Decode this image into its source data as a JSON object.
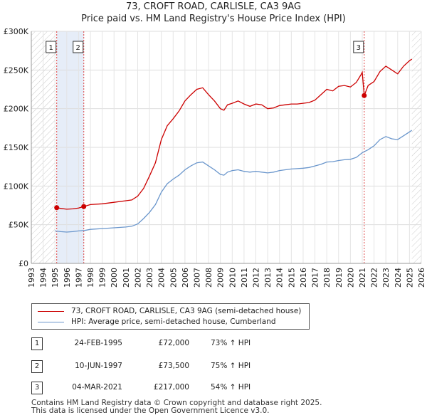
{
  "header": {
    "title": "73, CROFT ROAD, CARLISLE, CA3 9AG",
    "subtitle": "Price paid vs. HM Land Registry's House Price Index (HPI)"
  },
  "chart_data": {
    "type": "line",
    "title": "73, CROFT ROAD, CARLISLE, CA3 9AG",
    "subtitle": "Price paid vs. HM Land Registry's House Price Index (HPI)",
    "xlabel": "",
    "ylabel": "",
    "xlim": [
      1993,
      2026
    ],
    "ylim": [
      0,
      300000
    ],
    "x_ticks": [
      1993,
      1994,
      1995,
      1996,
      1997,
      1998,
      1999,
      2000,
      2001,
      2002,
      2003,
      2004,
      2005,
      2006,
      2007,
      2008,
      2009,
      2010,
      2011,
      2012,
      2013,
      2014,
      2015,
      2016,
      2017,
      2018,
      2019,
      2020,
      2021,
      2022,
      2023,
      2024,
      2025,
      2026
    ],
    "y_ticks": [
      {
        "value": 0,
        "label": "£0"
      },
      {
        "value": 50000,
        "label": "£50K"
      },
      {
        "value": 100000,
        "label": "£100K"
      },
      {
        "value": 150000,
        "label": "£150K"
      },
      {
        "value": 200000,
        "label": "£200K"
      },
      {
        "value": 250000,
        "label": "£250K"
      },
      {
        "value": 300000,
        "label": "£300K"
      }
    ],
    "grid": true,
    "colors": {
      "property": "#cc0000",
      "hpi": "#6a96cc",
      "shade": "#dce6f5",
      "marker_line": "#dd4444",
      "hatch": "#bbbbbb"
    },
    "series": [
      {
        "name": "73, CROFT ROAD, CARLISLE, CA3 9AG (semi-detached house)",
        "x": [
          1995.15,
          1995.5,
          1996.0,
          1996.5,
          1997.0,
          1997.44,
          1998.0,
          1999.0,
          2000.0,
          2001.0,
          2001.5,
          2002.0,
          2002.5,
          2003.0,
          2003.5,
          2004.0,
          2004.5,
          2005.0,
          2005.5,
          2006.0,
          2006.5,
          2007.0,
          2007.5,
          2008.0,
          2008.5,
          2009.0,
          2009.3,
          2009.6,
          2010.0,
          2010.5,
          2011.0,
          2011.5,
          2012.0,
          2012.5,
          2013.0,
          2013.5,
          2014.0,
          2014.5,
          2015.0,
          2015.5,
          2016.0,
          2016.5,
          2017.0,
          2017.5,
          2018.0,
          2018.5,
          2019.0,
          2019.5,
          2020.0,
          2020.5,
          2020.9,
          2021.0,
          2021.17,
          2021.5,
          2022.0,
          2022.5,
          2023.0,
          2023.5,
          2024.0,
          2024.5,
          2025.0,
          2025.2
        ],
        "values": [
          72000,
          71000,
          70000,
          70500,
          71500,
          73500,
          76000,
          77000,
          79000,
          81000,
          82000,
          87000,
          97000,
          113000,
          130000,
          160000,
          178000,
          187000,
          197000,
          210000,
          218000,
          225000,
          227000,
          218000,
          210000,
          200000,
          198000,
          205000,
          207000,
          210000,
          206000,
          203000,
          206000,
          205000,
          200000,
          201000,
          204000,
          205000,
          206000,
          206000,
          207000,
          208000,
          211000,
          218000,
          225000,
          223000,
          229000,
          230000,
          228000,
          234000,
          244000,
          247000,
          217000,
          230000,
          235000,
          248000,
          255000,
          250000,
          245000,
          255000,
          262000,
          264000
        ]
      },
      {
        "name": "HPI: Average price, semi-detached house, Cumberland",
        "x": [
          1995.0,
          1995.5,
          1996.0,
          1996.5,
          1997.0,
          1997.5,
          1998.0,
          1999.0,
          2000.0,
          2001.0,
          2001.5,
          2002.0,
          2002.5,
          2003.0,
          2003.5,
          2004.0,
          2004.5,
          2005.0,
          2005.5,
          2006.0,
          2006.5,
          2007.0,
          2007.5,
          2008.0,
          2008.5,
          2009.0,
          2009.3,
          2009.6,
          2010.0,
          2010.5,
          2011.0,
          2011.5,
          2012.0,
          2012.5,
          2013.0,
          2013.5,
          2014.0,
          2014.5,
          2015.0,
          2015.5,
          2016.0,
          2016.5,
          2017.0,
          2017.5,
          2018.0,
          2018.5,
          2019.0,
          2019.5,
          2020.0,
          2020.5,
          2021.0,
          2021.5,
          2022.0,
          2022.5,
          2023.0,
          2023.5,
          2024.0,
          2024.5,
          2025.0,
          2025.2
        ],
        "values": [
          42000,
          41000,
          40500,
          41000,
          42000,
          42500,
          44000,
          45000,
          46000,
          47000,
          48000,
          51000,
          58000,
          66000,
          76000,
          92000,
          103000,
          109000,
          114000,
          121000,
          126000,
          130000,
          131000,
          126000,
          121000,
          115000,
          114000,
          118000,
          120000,
          121000,
          119000,
          118000,
          119000,
          118000,
          117000,
          118000,
          120000,
          121000,
          122000,
          122500,
          123000,
          124000,
          126000,
          128000,
          131000,
          131500,
          133000,
          134000,
          134500,
          137000,
          143000,
          147000,
          152000,
          160000,
          164000,
          161000,
          160000,
          165000,
          170000,
          172000
        ]
      }
    ],
    "sales": [
      {
        "num": "1",
        "year": 1995.15,
        "value": 72000
      },
      {
        "num": "2",
        "year": 1997.44,
        "value": 73500
      },
      {
        "num": "3",
        "year": 2021.17,
        "value": 217000
      }
    ],
    "shaded_ranges": [
      [
        1995.15,
        1997.44
      ]
    ],
    "hatched_ranges": [
      [
        1993,
        1995
      ],
      [
        2025.2,
        2026
      ]
    ]
  },
  "legend": {
    "property_label": "73, CROFT ROAD, CARLISLE, CA3 9AG (semi-detached house)",
    "hpi_label": "HPI: Average price, semi-detached house, Cumberland"
  },
  "sales_table": [
    {
      "num": "1",
      "date": "24-FEB-1995",
      "price": "£72,000",
      "hpi": "73% ↑ HPI"
    },
    {
      "num": "2",
      "date": "10-JUN-1997",
      "price": "£73,500",
      "hpi": "75% ↑ HPI"
    },
    {
      "num": "3",
      "date": "04-MAR-2021",
      "price": "£217,000",
      "hpi": "54% ↑ HPI"
    }
  ],
  "footer": {
    "line1": "Contains HM Land Registry data © Crown copyright and database right 2025.",
    "line2": "This data is licensed under the Open Government Licence v3.0."
  }
}
